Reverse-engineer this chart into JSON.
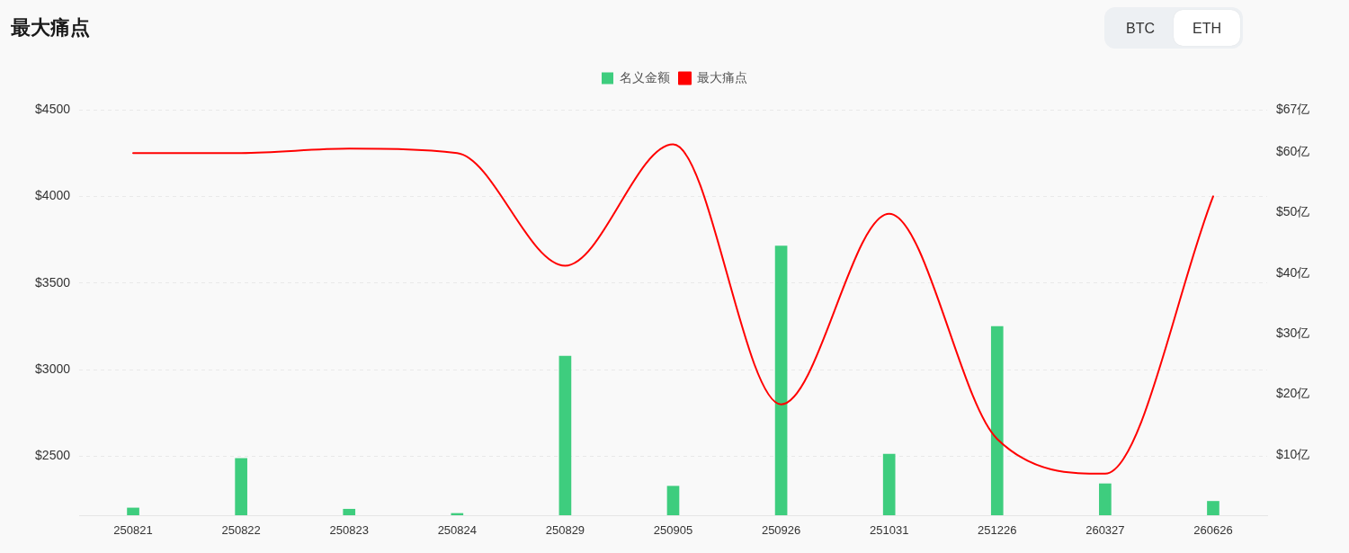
{
  "chart_data": {
    "type": "bar",
    "title": "最大痛点",
    "annotations": [
      "BTC",
      "ETH"
    ],
    "categories": [
      "250821",
      "250822",
      "250823",
      "250824",
      "250829",
      "250905",
      "250926",
      "251031",
      "251226",
      "260327",
      "260626"
    ],
    "series": [
      {
        "name": "名义金额",
        "color": "#3ecd7e",
        "axis": "y2",
        "values": [
          1.2,
          9.4,
          1.0,
          0.3,
          26.3,
          4.8,
          44.5,
          10.1,
          31.2,
          5.2,
          2.3
        ]
      },
      {
        "name": "最大痛点",
        "type": "line",
        "color": "#ff0000",
        "values": [
          4250,
          4250,
          4275,
          4250,
          3600,
          4300,
          2800,
          3900,
          2600,
          2400,
          4000
        ]
      }
    ],
    "ylim": [
      2160,
      4500
    ],
    "yticks": [
      {
        "value": 2500,
        "label": "$2500"
      },
      {
        "value": 3000,
        "label": "$3000"
      },
      {
        "value": 3500,
        "label": "$3500"
      },
      {
        "value": 4000,
        "label": "$4000"
      },
      {
        "value": 4500,
        "label": "$4500"
      }
    ],
    "y2lim": [
      0,
      67
    ],
    "y2ticks": [
      {
        "value": 10,
        "label": "$10亿"
      },
      {
        "value": 20,
        "label": "$20亿"
      },
      {
        "value": 30,
        "label": "$30亿"
      },
      {
        "value": 40,
        "label": "$40亿"
      },
      {
        "value": 50,
        "label": "$50亿"
      },
      {
        "value": 60,
        "label": "$60亿"
      },
      {
        "value": 67,
        "label": "$67亿"
      }
    ],
    "grid": "y",
    "legend": "top"
  }
}
